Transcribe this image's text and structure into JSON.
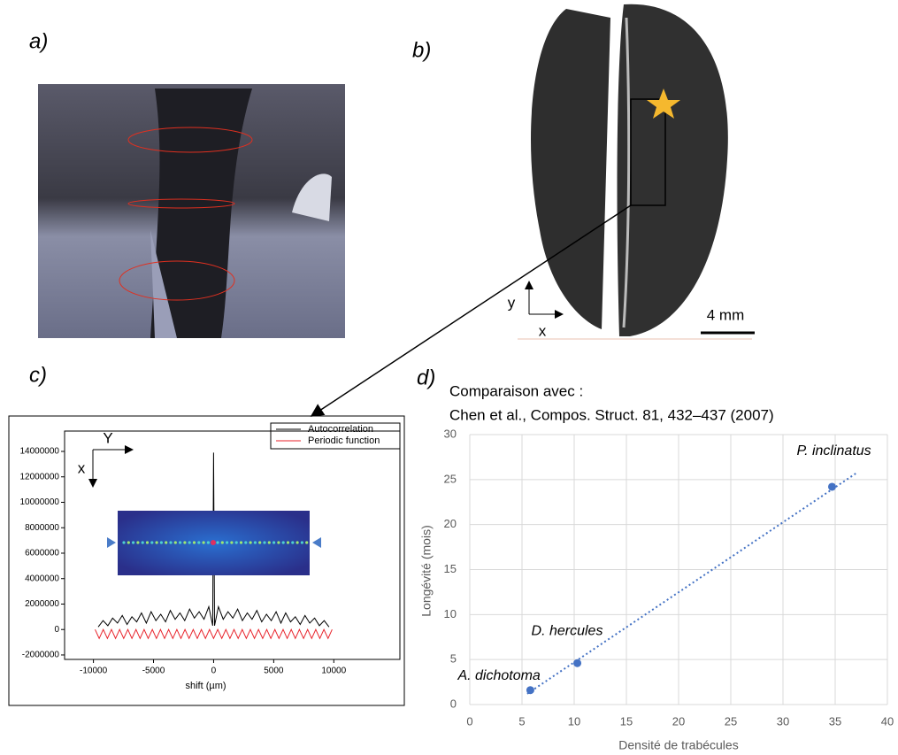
{
  "panel_labels": [
    "a)",
    "b)",
    "c)",
    "d)"
  ],
  "panel_b": {
    "scale_bar": "4 mm",
    "axes": [
      "y",
      "x"
    ]
  },
  "chart_data": [
    {
      "type": "line",
      "xlabel": "shift (µm)",
      "axis_arrows": [
        "Y",
        "x"
      ],
      "xlim": [
        -12400,
        15500
      ],
      "ylim": [
        -2350000,
        15600000
      ],
      "xticks": [
        -10000,
        -5000,
        0,
        5000,
        10000
      ],
      "yticks": [
        -2000000,
        0,
        2000000,
        4000000,
        6000000,
        8000000,
        10000000,
        12000000,
        14000000
      ],
      "legend": "upper right",
      "series": [
        {
          "name": "Autocorrelation",
          "color": "#000000",
          "x": [
            -9600,
            -9200,
            -8800,
            -8400,
            -8000,
            -7600,
            -7200,
            -6800,
            -6400,
            -6000,
            -5600,
            -5200,
            -4800,
            -4400,
            -4000,
            -3600,
            -3200,
            -2800,
            -2400,
            -2000,
            -1600,
            -1200,
            -800,
            -400,
            -80,
            0,
            80,
            400,
            800,
            1200,
            1600,
            2000,
            2400,
            2800,
            3200,
            3600,
            4000,
            4400,
            4800,
            5200,
            5600,
            6000,
            6400,
            6800,
            7200,
            7600,
            8000,
            8400,
            8800,
            9200,
            9600
          ],
          "values": [
            200000,
            700000,
            300000,
            900000,
            500000,
            1100000,
            400000,
            1000000,
            600000,
            1300000,
            500000,
            1400000,
            700000,
            1200000,
            600000,
            1500000,
            800000,
            1300000,
            700000,
            1600000,
            900000,
            1400000,
            800000,
            1800000,
            300000,
            13900000,
            300000,
            1800000,
            800000,
            1400000,
            900000,
            1600000,
            700000,
            1300000,
            800000,
            1500000,
            600000,
            1200000,
            700000,
            1400000,
            500000,
            1300000,
            600000,
            1000000,
            400000,
            1100000,
            500000,
            900000,
            300000,
            700000,
            200000
          ]
        },
        {
          "name": "Periodic function",
          "color": "#e8222a",
          "x": [
            -9860,
            -9520,
            -9180,
            -8840,
            -8500,
            -8160,
            -7820,
            -7480,
            -7140,
            -6800,
            -6460,
            -6120,
            -5780,
            -5440,
            -5100,
            -4760,
            -4420,
            -4080,
            -3740,
            -3400,
            -3060,
            -2720,
            -2380,
            -2040,
            -1700,
            -1360,
            -1020,
            -680,
            -340,
            0,
            340,
            680,
            1020,
            1360,
            1700,
            2040,
            2380,
            2720,
            3060,
            3400,
            3740,
            4080,
            4420,
            4760,
            5100,
            5440,
            5780,
            6120,
            6460,
            6800,
            7140,
            7480,
            7820,
            8160,
            8500,
            8840,
            9180,
            9520,
            9860
          ],
          "values": [
            0,
            -700000,
            0,
            -700000,
            0,
            -700000,
            0,
            -700000,
            0,
            -700000,
            0,
            -700000,
            0,
            -700000,
            0,
            -700000,
            0,
            -700000,
            0,
            -700000,
            0,
            -700000,
            0,
            -700000,
            0,
            -700000,
            0,
            -700000,
            0,
            -700000,
            0,
            -700000,
            0,
            -700000,
            0,
            -700000,
            0,
            -700000,
            0,
            -700000,
            0,
            -700000,
            0,
            -700000,
            0,
            -700000,
            0,
            -700000,
            0,
            -700000,
            0,
            -700000,
            0,
            -700000,
            0,
            -700000,
            0,
            -700000,
            0
          ]
        }
      ]
    },
    {
      "type": "scatter",
      "title": "Comparaison avec :",
      "subtitle": "Chen et al., Compos. Struct. 81, 432–437 (2007)",
      "xlabel": "Densité de trabécules",
      "ylabel": "Longévité (mois)",
      "xlim": [
        0,
        40
      ],
      "ylim": [
        0,
        30
      ],
      "xticks": [
        0,
        5,
        10,
        15,
        20,
        25,
        30,
        35,
        40
      ],
      "yticks": [
        0,
        5,
        10,
        15,
        20,
        25,
        30
      ],
      "grid": true,
      "color": "#4472c4",
      "x": [
        5.8,
        10.3,
        34.7
      ],
      "values": [
        1.6,
        4.6,
        24.2
      ],
      "point_labels": [
        "A. dichotoma",
        "D. hercules",
        "P. inclinatus"
      ],
      "trendline": {
        "x": [
          5.5,
          37
        ],
        "values": [
          1.2,
          25.7
        ]
      }
    }
  ]
}
